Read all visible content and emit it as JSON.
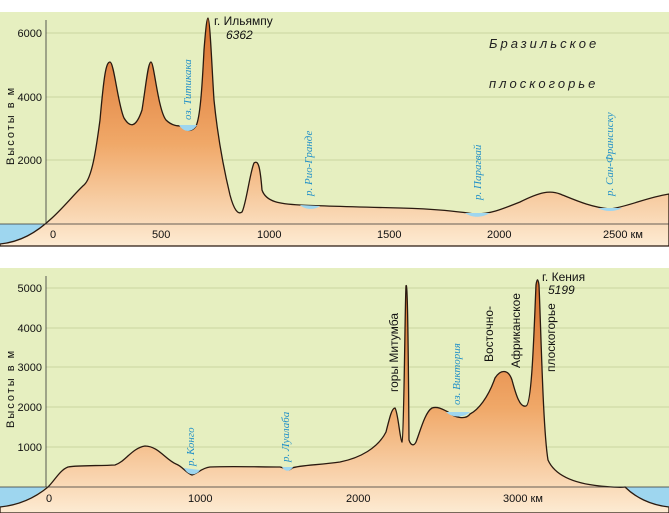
{
  "colors": {
    "background_panel": "#e6efc0",
    "terrain_top": "#e0823f",
    "terrain_bottom": "#fbe3c2",
    "water": "#9ed6ef",
    "water_label": "#1f8fc8"
  },
  "top_profile": {
    "y_axis_label": "Высоты  в  м",
    "y_ticks": [
      "6000",
      "4000",
      "2000"
    ],
    "x_ticks": [
      "0",
      "500",
      "1000",
      "1500",
      "2000",
      "2500 км"
    ],
    "peak_name": "г. Ильямпу",
    "peak_height": "6362",
    "lake_label": "оз. Титикака",
    "rivers": [
      "р. Рио-Гранде",
      "р. Парагвай",
      "р. Сан-Франсиску"
    ],
    "region_line1": "Бразильское",
    "region_line2": "плоскогорье"
  },
  "bottom_profile": {
    "y_axis_label": "Высоты  в  м",
    "y_ticks": [
      "5000",
      "4000",
      "3000",
      "2000",
      "1000"
    ],
    "x_ticks": [
      "0",
      "1000",
      "2000",
      "3000 км"
    ],
    "peak_name": "г. Кения",
    "peak_height": "5199",
    "rivers": [
      "р. Конго",
      "р. Луалаба"
    ],
    "lake_label": "оз. Виктория",
    "mountains_label": "горы Митумба",
    "plateau_line1": "Восточно-",
    "plateau_line2": "Африканское",
    "plateau_line3": "плоскогорье"
  }
}
